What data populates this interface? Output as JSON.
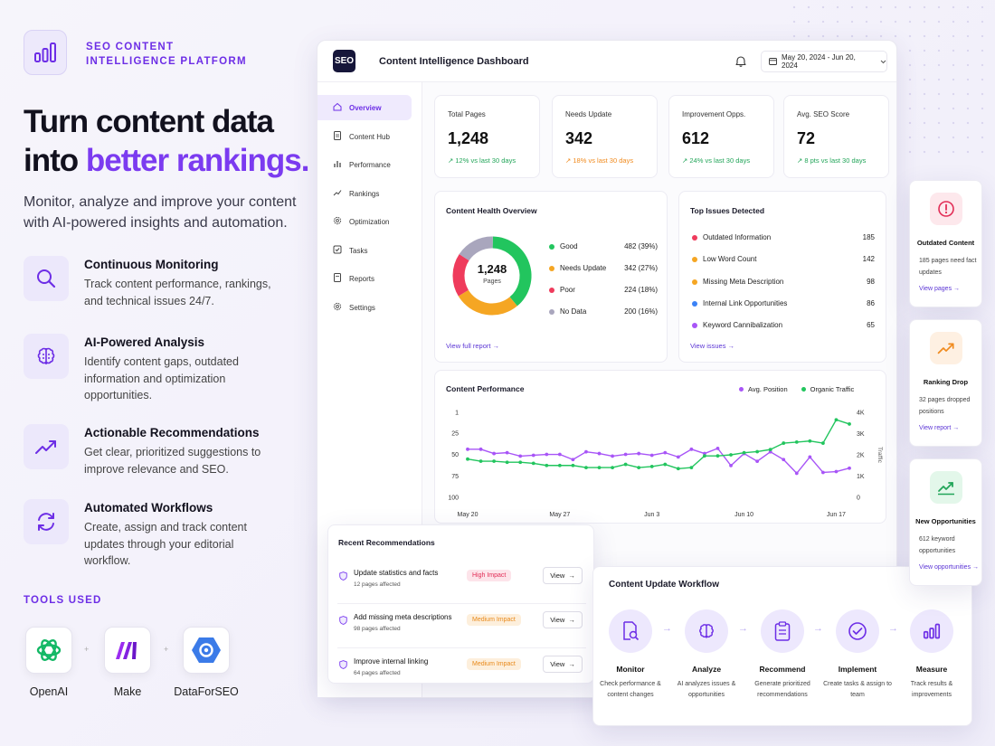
{
  "brand": {
    "line1": "SEO CONTENT",
    "line2": "INTELLIGENCE PLATFORM"
  },
  "hero": {
    "line1": "Turn content data",
    "line2_prefix": "into ",
    "line2_highlight": "better rankings."
  },
  "lead": "Monitor, analyze and improve your content with AI-powered insights and automation.",
  "features": [
    {
      "title": "Continuous Monitoring",
      "desc": "Track content performance, rankings, and technical issues 24/7.",
      "icon": "search-icon"
    },
    {
      "title": "AI-Powered Analysis",
      "desc": "Identify content gaps, outdated information and optimization opportunities.",
      "icon": "brain-icon"
    },
    {
      "title": "Actionable Recommendations",
      "desc": "Get clear, prioritized suggestions to improve relevance and SEO.",
      "icon": "trend-up-icon"
    },
    {
      "title": "Automated Workflows",
      "desc": "Create, assign and track content updates through your editorial workflow.",
      "icon": "refresh-icon"
    }
  ],
  "tools": {
    "label": "TOOLS USED",
    "items": [
      {
        "name": "OpenAI"
      },
      {
        "name": "Make"
      },
      {
        "name": "DataForSEO"
      }
    ],
    "separator": "+"
  },
  "dashboard": {
    "logo": "SEO",
    "title": "Content Intelligence Dashboard",
    "date_range": "May 20, 2024 - Jun 20, 2024",
    "nav": [
      "Overview",
      "Content Hub",
      "Performance",
      "Rankings",
      "Optimization",
      "Tasks",
      "Reports",
      "Settings"
    ],
    "kpis": [
      {
        "label": "Total Pages",
        "value": "1,248",
        "change": "↗ 12% vs last 30 days",
        "tone": "green"
      },
      {
        "label": "Needs Update",
        "value": "342",
        "change": "↗ 18% vs last 30 days",
        "tone": "orange"
      },
      {
        "label": "Improvement Opps.",
        "value": "612",
        "change": "↗ 24% vs last 30 days",
        "tone": "green"
      },
      {
        "label": "Avg. SEO Score",
        "value": "72",
        "change": "↗ 8 pts vs last 30 days",
        "tone": "green"
      }
    ],
    "health": {
      "title": "Content Health Overview",
      "center_value": "1,248",
      "center_label": "Pages",
      "items": [
        {
          "label": "Good",
          "value": "482 (39%)",
          "count": 482,
          "color": "#22c55e"
        },
        {
          "label": "Needs Update",
          "value": "342 (27%)",
          "count": 342,
          "color": "#f5a623"
        },
        {
          "label": "Poor",
          "value": "224 (18%)",
          "count": 224,
          "color": "#ef3b5c"
        },
        {
          "label": "No Data",
          "value": "200 (16%)",
          "count": 200,
          "color": "#a9a6bd"
        }
      ],
      "link": "View full report →"
    },
    "issues": {
      "title": "Top Issues Detected",
      "items": [
        {
          "label": "Outdated Information",
          "value": "185",
          "color": "#ef3b5c"
        },
        {
          "label": "Low Word Count",
          "value": "142",
          "color": "#f5a623"
        },
        {
          "label": "Missing Meta Description",
          "value": "98",
          "color": "#f5a623"
        },
        {
          "label": "Internal Link Opportunities",
          "value": "86",
          "color": "#3b82f6"
        },
        {
          "label": "Keyword Cannibalization",
          "value": "65",
          "color": "#a855f7"
        }
      ],
      "link": "View issues →"
    },
    "recs": {
      "title": "Recent Recommendations",
      "items": [
        {
          "title": "Update statistics and facts",
          "sub": "12 pages affected",
          "badge": "High Impact",
          "tone": "high",
          "button": "View"
        },
        {
          "title": "Add missing meta descriptions",
          "sub": "98 pages affected",
          "badge": "Medium Impact",
          "tone": "medium",
          "button": "View"
        },
        {
          "title": "Improve internal linking",
          "sub": "64 pages affected",
          "badge": "Medium Impact",
          "tone": "medium",
          "button": "View"
        }
      ]
    }
  },
  "chart_data": {
    "type": "line",
    "title": "Content Performance",
    "x": [
      "May 20",
      "May 21",
      "May 22",
      "May 23",
      "May 24",
      "May 25",
      "May 26",
      "May 27",
      "May 28",
      "May 29",
      "May 30",
      "May 31",
      "Jun 1",
      "Jun 2",
      "Jun 3",
      "Jun 4",
      "Jun 5",
      "Jun 6",
      "Jun 7",
      "Jun 8",
      "Jun 9",
      "Jun 10",
      "Jun 11",
      "Jun 12",
      "Jun 13",
      "Jun 14",
      "Jun 15",
      "Jun 16",
      "Jun 17",
      "Jun 18"
    ],
    "xticks": [
      "May 20",
      "May 27",
      "Jun 3",
      "Jun 10",
      "Jun 17"
    ],
    "series": [
      {
        "name": "Avg. Position",
        "axis": "left",
        "color": "#a855f7",
        "values": [
          44,
          44,
          49,
          48,
          52,
          51,
          50,
          50,
          56,
          47,
          49,
          52,
          50,
          49,
          51,
          48,
          53,
          44,
          49,
          43,
          63,
          49,
          58,
          47,
          56,
          72,
          53,
          71,
          70,
          66
        ]
      },
      {
        "name": "Organic Traffic",
        "axis": "right",
        "color": "#22c55e",
        "values": [
          1800,
          1700,
          1700,
          1650,
          1650,
          1600,
          1500,
          1500,
          1500,
          1400,
          1400,
          1400,
          1550,
          1400,
          1450,
          1550,
          1350,
          1400,
          1950,
          1950,
          2000,
          2100,
          2150,
          2250,
          2550,
          2600,
          2650,
          2550,
          3650,
          3450
        ]
      }
    ],
    "y_left": {
      "ticks": [
        "1",
        "25",
        "50",
        "75",
        "100"
      ],
      "range": [
        1,
        100
      ],
      "inverted": true
    },
    "y_right": {
      "ticks": [
        "4K",
        "3K",
        "2K",
        "1K",
        "0"
      ],
      "range": [
        0,
        4000
      ],
      "label": "Traffic"
    },
    "legend": "top-right",
    "grid": false
  },
  "workflow": {
    "title": "Content Update Workflow",
    "arrow": "→",
    "steps": [
      {
        "name": "Monitor",
        "desc": "Check performance & content changes",
        "icon": "document-search-icon"
      },
      {
        "name": "Analyze",
        "desc": "AI analyzes issues & opportunities",
        "icon": "brain-icon"
      },
      {
        "name": "Recommend",
        "desc": "Generate prioritized recommendations",
        "icon": "clipboard-icon"
      },
      {
        "name": "Implement",
        "desc": "Create tasks & assign to team",
        "icon": "check-circle-icon"
      },
      {
        "name": "Measure",
        "desc": "Track results & improvements",
        "icon": "bar-chart-icon"
      }
    ]
  },
  "side_cards": [
    {
      "title": "Outdated Content",
      "desc": "185 pages need fact updates",
      "link": "View pages →",
      "icon": "alert-icon"
    },
    {
      "title": "Ranking Drop",
      "desc": "32 pages dropped positions",
      "link": "View report →",
      "icon": "trend-up-icon"
    },
    {
      "title": "New Opportunities",
      "desc": "612 keyword opportunities",
      "link": "View opportunities →",
      "icon": "chart-up-icon"
    }
  ]
}
